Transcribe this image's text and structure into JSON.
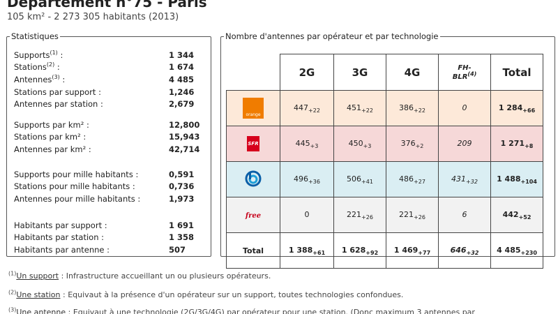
{
  "header": {
    "title": "Département n°75 - Paris",
    "subtitle": "105 km² - 2 273 305 habitants (2013)"
  },
  "stats": {
    "legend": "Statistiques",
    "groups": [
      [
        {
          "label": "Supports",
          "sup": "(1)",
          "suffix": " :",
          "value": "1 344"
        },
        {
          "label": "Stations",
          "sup": "(2)",
          "suffix": " :",
          "value": "1 674"
        },
        {
          "label": "Antennes",
          "sup": "(3)",
          "suffix": " :",
          "value": "4 485"
        },
        {
          "label": "Stations par support :",
          "sup": "",
          "suffix": "",
          "value": "1,246"
        },
        {
          "label": "Antennes par station :",
          "sup": "",
          "suffix": "",
          "value": "2,679"
        }
      ],
      [
        {
          "label": "Supports par km² :",
          "sup": "",
          "suffix": "",
          "value": "12,800"
        },
        {
          "label": "Stations par km² :",
          "sup": "",
          "suffix": "",
          "value": "15,943"
        },
        {
          "label": "Antennes par km² :",
          "sup": "",
          "suffix": "",
          "value": "42,714"
        }
      ],
      [
        {
          "label": "Supports pour mille habitants :",
          "sup": "",
          "suffix": "",
          "value": "0,591"
        },
        {
          "label": "Stations pour mille habitants :",
          "sup": "",
          "suffix": "",
          "value": "0,736"
        },
        {
          "label": "Antennes pour mille habitants :",
          "sup": "",
          "suffix": "",
          "value": "1,973"
        }
      ],
      [
        {
          "label": "Habitants par support :",
          "sup": "",
          "suffix": "",
          "value": "1 691"
        },
        {
          "label": "Habitants par station :",
          "sup": "",
          "suffix": "",
          "value": "1 358"
        },
        {
          "label": "Habitants par antenne :",
          "sup": "",
          "suffix": "",
          "value": "507"
        }
      ]
    ]
  },
  "antennas": {
    "legend": "Nombre d'antennes par opérateur et par technologie",
    "headers": {
      "c2g": "2G",
      "c3g": "3G",
      "c4g": "4G",
      "fh": "FH-",
      "blr": "BLR",
      "blr_sup": "(4)",
      "total": "Total"
    },
    "rows": [
      {
        "operator": "orange",
        "logo_text": "orange",
        "color": "#fde9d9",
        "cells": [
          {
            "v": "447",
            "s": "+22"
          },
          {
            "v": "451",
            "s": "+22"
          },
          {
            "v": "386",
            "s": "+22"
          },
          {
            "v": "0",
            "s": ""
          },
          {
            "v": "1 284",
            "s": "+66"
          }
        ]
      },
      {
        "operator": "sfr",
        "logo_text": "SFR",
        "color": "#f6d8d8",
        "cells": [
          {
            "v": "445",
            "s": "+3"
          },
          {
            "v": "450",
            "s": "+3"
          },
          {
            "v": "376",
            "s": "+2"
          },
          {
            "v": "209",
            "s": ""
          },
          {
            "v": "1 271",
            "s": "+8"
          }
        ]
      },
      {
        "operator": "bouygues",
        "logo_text": "",
        "color": "#daeef3",
        "cells": [
          {
            "v": "496",
            "s": "+36"
          },
          {
            "v": "506",
            "s": "+41"
          },
          {
            "v": "486",
            "s": "+27"
          },
          {
            "v": "431",
            "s": "+32"
          },
          {
            "v": "1 488",
            "s": "+104"
          }
        ]
      },
      {
        "operator": "free",
        "logo_text": "free",
        "color": "#f2f2f2",
        "cells": [
          {
            "v": "0",
            "s": ""
          },
          {
            "v": "221",
            "s": "+26"
          },
          {
            "v": "221",
            "s": "+26"
          },
          {
            "v": "6",
            "s": ""
          },
          {
            "v": "442",
            "s": "+52"
          }
        ]
      }
    ],
    "total": {
      "label": "Total",
      "cells": [
        {
          "v": "1 388",
          "s": "+61"
        },
        {
          "v": "1 628",
          "s": "+92"
        },
        {
          "v": "1 469",
          "s": "+77"
        },
        {
          "v": "646",
          "s": "+32"
        },
        {
          "v": "4 485",
          "s": "+230"
        }
      ]
    }
  },
  "footnotes": [
    {
      "sup": "(1)",
      "term": "Un support",
      "text": " : Infrastructure accueillant un ou plusieurs opérateurs."
    },
    {
      "sup": "(2)",
      "term": "Une station",
      "text": " : Equivaut à la présence d'un opérateur sur un support, toutes technologies confondues."
    },
    {
      "sup": "(3)",
      "term": "Une antenne",
      "text": " : Equivaut à une technologie (2G/3G/4G) par opérateur pour une station. (Donc maximum 3 antennes par"
    }
  ]
}
